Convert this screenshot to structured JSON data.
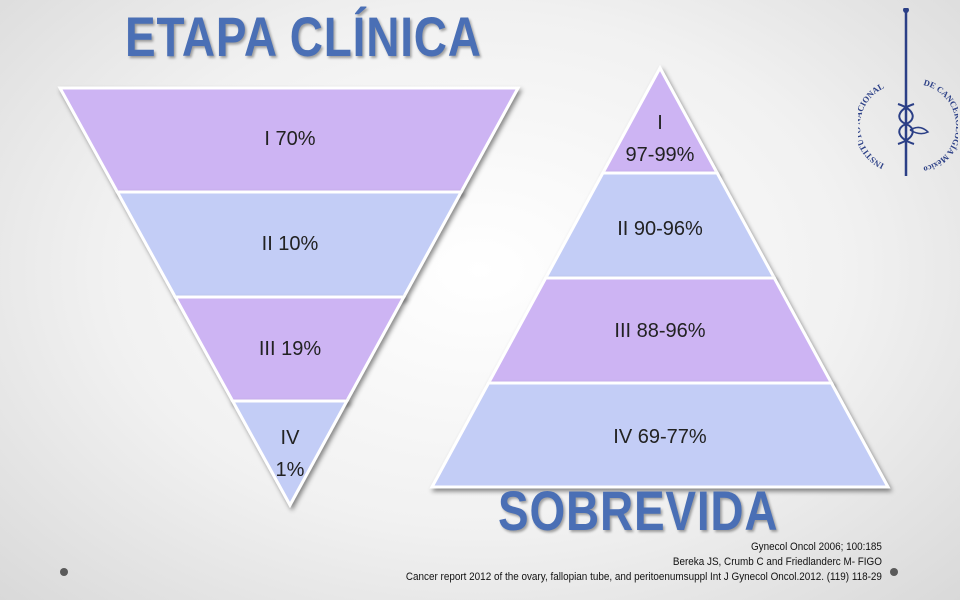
{
  "title_top": "ETAPA CLÍNICA",
  "title_bottom": "SOBREVIDA",
  "colors": {
    "title": "#4a6fb5",
    "purple": "#cdb4f3",
    "blue": "#c3cdf6",
    "stroke": "#ffffff"
  },
  "inverted_pyramid": {
    "levels": [
      {
        "lines": [
          "I 70%"
        ],
        "color": "purple"
      },
      {
        "lines": [
          "II 10%"
        ],
        "color": "blue"
      },
      {
        "lines": [
          "III 19%"
        ],
        "color": "purple"
      },
      {
        "lines": [
          "IV",
          "1%"
        ],
        "color": "blue"
      }
    ]
  },
  "pyramid": {
    "levels": [
      {
        "lines": [
          "I",
          "97-99%"
        ],
        "color": "purple"
      },
      {
        "lines": [
          "II 90-96%"
        ],
        "color": "blue"
      },
      {
        "lines": [
          "III 88-96%"
        ],
        "color": "purple"
      },
      {
        "lines": [
          "IV 69-77%"
        ],
        "color": "blue"
      }
    ]
  },
  "references": [
    "Gynecol  Oncol 2006; 100:185",
    "Bereka JS, Crumb C and Friedlanderc M- FIGO",
    "Cancer report 2012 of the ovary, fallopian tube, and peritoenumsuppl Int J Gynecol Oncol.2012. (119) 118-29"
  ],
  "logo": {
    "text_left": "INSTITUTO NACIONAL",
    "text_right": "DE CANCEROLOGÍA México",
    "icon": "caduceus-seal-icon"
  }
}
